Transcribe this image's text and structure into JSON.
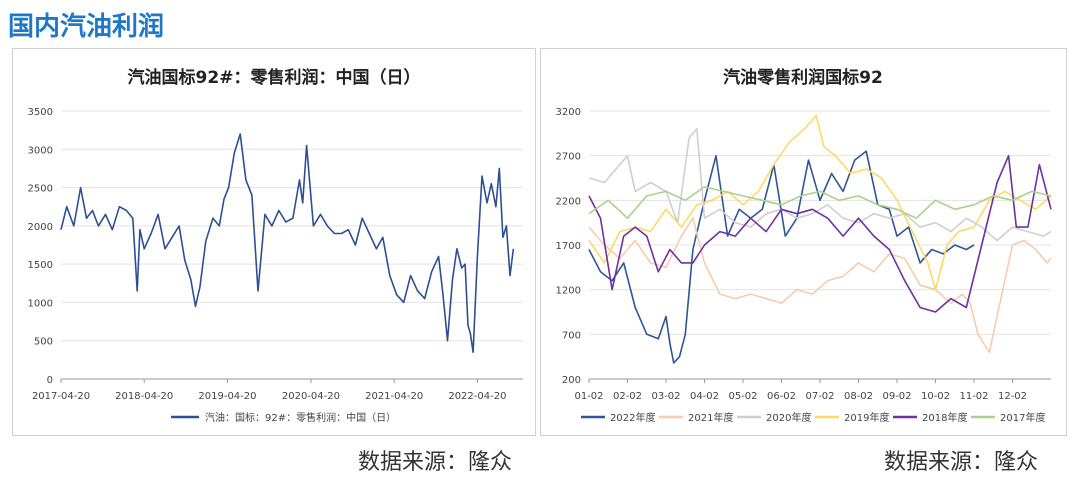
{
  "page_title": "国内汽油利润",
  "source_left": "数据来源：隆众",
  "source_right": "数据来源：隆众",
  "chart_data": [
    {
      "type": "line",
      "title": "汽油国标92#：零售利润：中国（日）",
      "x_ticks": [
        "2017-04-20",
        "2018-04-20",
        "2019-04-20",
        "2020-04-20",
        "2021-04-20",
        "2022-04-20"
      ],
      "ylim": [
        0,
        3500
      ],
      "y_ticks": [
        0,
        500,
        1000,
        1500,
        2000,
        2500,
        3000,
        3500
      ],
      "grid": "horizontal",
      "legend_position": "bottom",
      "series": [
        {
          "name": "汽油：国标：92#：零售利润：中国（日）",
          "color": "#2f4f94",
          "x": [
            "2017-04-20",
            "2017-05-15",
            "2017-06-15",
            "2017-07-15",
            "2017-08-10",
            "2017-09-05",
            "2017-10-01",
            "2017-11-01",
            "2017-12-01",
            "2018-01-01",
            "2018-02-01",
            "2018-03-01",
            "2018-03-20",
            "2018-04-01",
            "2018-04-20",
            "2018-05-20",
            "2018-06-20",
            "2018-07-20",
            "2018-08-20",
            "2018-09-20",
            "2018-10-15",
            "2018-11-10",
            "2018-12-01",
            "2018-12-20",
            "2019-01-15",
            "2019-02-15",
            "2019-03-15",
            "2019-04-05",
            "2019-04-25",
            "2019-05-20",
            "2019-06-15",
            "2019-07-10",
            "2019-08-05",
            "2019-09-01",
            "2019-10-01",
            "2019-11-01",
            "2019-12-01",
            "2020-01-01",
            "2020-02-01",
            "2020-03-01",
            "2020-03-15",
            "2020-04-01",
            "2020-05-01",
            "2020-06-01",
            "2020-07-01",
            "2020-08-01",
            "2020-09-01",
            "2020-10-01",
            "2020-11-01",
            "2020-12-01",
            "2021-01-01",
            "2021-02-01",
            "2021-03-01",
            "2021-04-01",
            "2021-05-01",
            "2021-06-01",
            "2021-07-01",
            "2021-08-01",
            "2021-09-01",
            "2021-10-01",
            "2021-11-01",
            "2021-11-20",
            "2021-12-10",
            "2022-01-01",
            "2022-01-20",
            "2022-02-10",
            "2022-02-25",
            "2022-03-10",
            "2022-03-20",
            "2022-04-01",
            "2022-04-20",
            "2022-05-10",
            "2022-06-01",
            "2022-06-20",
            "2022-07-10",
            "2022-07-25",
            "2022-08-10",
            "2022-08-25",
            "2022-09-10",
            "2022-09-25"
          ],
          "values": [
            1950,
            2250,
            2000,
            2500,
            2100,
            2200,
            2000,
            2150,
            1950,
            2250,
            2200,
            2100,
            1150,
            1950,
            1700,
            1900,
            2150,
            1700,
            1850,
            2000,
            1550,
            1300,
            950,
            1200,
            1800,
            2100,
            2000,
            2350,
            2500,
            2950,
            3200,
            2600,
            2400,
            1150,
            2150,
            2000,
            2200,
            2050,
            2100,
            2600,
            2300,
            3050,
            2000,
            2150,
            2000,
            1900,
            1900,
            1950,
            1750,
            2100,
            1900,
            1700,
            1850,
            1350,
            1100,
            1000,
            1350,
            1150,
            1050,
            1400,
            1600,
            1100,
            500,
            1300,
            1700,
            1450,
            1500,
            700,
            600,
            350,
            1600,
            2650,
            2300,
            2550,
            2250,
            2750,
            1850,
            2000,
            1350,
            1700
          ]
        }
      ]
    },
    {
      "type": "line",
      "title": "汽油零售利润国标92",
      "categories": [
        "01-02",
        "02-02",
        "03-02",
        "04-02",
        "05-02",
        "06-02",
        "07-02",
        "08-02",
        "09-02",
        "10-02",
        "11-02",
        "12-02"
      ],
      "ylim": [
        200,
        3200
      ],
      "y_ticks": [
        200,
        700,
        1200,
        1700,
        2200,
        2700,
        3200
      ],
      "grid": "horizontal",
      "legend_position": "bottom",
      "series": [
        {
          "name": "2022年度",
          "color": "#2f5597",
          "x": [
            0,
            0.3,
            0.6,
            0.9,
            1.2,
            1.5,
            1.8,
            2.0,
            2.1,
            2.2,
            2.35,
            2.5,
            2.7,
            3.0,
            3.3,
            3.6,
            3.9,
            4.2,
            4.5,
            4.8,
            5.1,
            5.4,
            5.7,
            6.0,
            6.3,
            6.6,
            6.9,
            7.2,
            7.5,
            7.8,
            8.0,
            8.3,
            8.6,
            8.9,
            9.2,
            9.5,
            9.8,
            10.0
          ],
          "values": [
            1650,
            1400,
            1300,
            1500,
            1000,
            700,
            650,
            900,
            600,
            380,
            450,
            700,
            1650,
            2200,
            2700,
            1800,
            2100,
            2000,
            2100,
            2600,
            1800,
            2000,
            2650,
            2200,
            2500,
            2300,
            2650,
            2750,
            2150,
            2100,
            1800,
            1900,
            1500,
            1650,
            1600,
            1700,
            1650,
            1700
          ]
        },
        {
          "name": "2021年度",
          "color": "#f8cbad",
          "x": [
            0,
            0.4,
            0.8,
            1.2,
            1.6,
            2.0,
            2.4,
            2.7,
            3.0,
            3.4,
            3.8,
            4.2,
            4.6,
            5.0,
            5.4,
            5.8,
            6.2,
            6.6,
            7.0,
            7.4,
            7.8,
            8.2,
            8.6,
            9.0,
            9.4,
            9.7,
            9.9,
            10.1,
            10.4,
            10.7,
            11.0,
            11.3,
            11.6,
            11.9,
            12.0
          ],
          "values": [
            1900,
            1700,
            1550,
            1750,
            1500,
            1450,
            1800,
            2000,
            1500,
            1150,
            1100,
            1150,
            1100,
            1050,
            1200,
            1150,
            1300,
            1350,
            1500,
            1400,
            1600,
            1550,
            1250,
            1200,
            1050,
            1150,
            1050,
            700,
            500,
            1100,
            1700,
            1750,
            1650,
            1500,
            1550
          ]
        },
        {
          "name": "2020年度",
          "color": "#cfcfcf",
          "x": [
            0,
            0.4,
            0.8,
            1.0,
            1.2,
            1.6,
            2.0,
            2.3,
            2.6,
            2.8,
            3.0,
            3.4,
            3.8,
            4.2,
            4.6,
            5.0,
            5.4,
            5.8,
            6.2,
            6.6,
            7.0,
            7.4,
            7.8,
            8.2,
            8.6,
            9.0,
            9.4,
            9.8,
            10.2,
            10.6,
            11.0,
            11.4,
            11.8,
            12.0
          ],
          "values": [
            2450,
            2400,
            2600,
            2700,
            2300,
            2400,
            2300,
            1950,
            2900,
            3000,
            2000,
            2100,
            1950,
            1900,
            2050,
            2100,
            2000,
            2050,
            2150,
            2000,
            1950,
            2050,
            2000,
            2050,
            1900,
            1950,
            1850,
            2000,
            1900,
            1750,
            1900,
            1850,
            1800,
            1850
          ]
        },
        {
          "name": "2019年度",
          "color": "#ffd966",
          "x": [
            0,
            0.4,
            0.8,
            1.2,
            1.6,
            2.0,
            2.4,
            2.8,
            3.2,
            3.6,
            4.0,
            4.4,
            4.8,
            5.2,
            5.6,
            5.9,
            6.1,
            6.4,
            6.8,
            7.2,
            7.6,
            8.0,
            8.4,
            8.8,
            9.0,
            9.3,
            9.6,
            10.0,
            10.4,
            10.8,
            11.2,
            11.6,
            12.0
          ],
          "values": [
            1750,
            1500,
            1850,
            1900,
            1850,
            2100,
            1900,
            2150,
            2200,
            2300,
            2150,
            2300,
            2600,
            2850,
            3000,
            3150,
            2800,
            2700,
            2500,
            2550,
            2450,
            2200,
            1850,
            1500,
            1200,
            1700,
            1850,
            1900,
            2200,
            2300,
            2200,
            2100,
            2250
          ]
        },
        {
          "name": "2018年度",
          "color": "#7030a0",
          "x": [
            0,
            0.3,
            0.6,
            0.9,
            1.2,
            1.5,
            1.8,
            2.1,
            2.4,
            2.7,
            3.0,
            3.4,
            3.8,
            4.2,
            4.6,
            5.0,
            5.4,
            5.8,
            6.2,
            6.6,
            7.0,
            7.4,
            7.8,
            8.2,
            8.6,
            9.0,
            9.4,
            9.8,
            10.2,
            10.6,
            10.9,
            11.1,
            11.4,
            11.7,
            12.0
          ],
          "values": [
            2250,
            2000,
            1200,
            1800,
            1900,
            1800,
            1400,
            1650,
            1500,
            1500,
            1700,
            1850,
            1800,
            2000,
            1850,
            2100,
            2050,
            2100,
            2000,
            1800,
            2000,
            1800,
            1650,
            1300,
            1000,
            950,
            1100,
            1000,
            1700,
            2400,
            2700,
            1900,
            1900,
            2600,
            2100
          ]
        },
        {
          "name": "2017年度",
          "color": "#a9d18e",
          "x": [
            0,
            0.5,
            1.0,
            1.5,
            2.0,
            2.5,
            3.0,
            3.5,
            4.0,
            4.5,
            5.0,
            5.5,
            6.0,
            6.5,
            7.0,
            7.5,
            8.0,
            8.5,
            9.0,
            9.5,
            10.0,
            10.5,
            11.0,
            11.5,
            12.0
          ],
          "values": [
            2050,
            2200,
            2000,
            2250,
            2300,
            2200,
            2350,
            2300,
            2250,
            2200,
            2150,
            2250,
            2300,
            2200,
            2250,
            2150,
            2100,
            2000,
            2200,
            2100,
            2150,
            2250,
            2200,
            2300,
            2250
          ]
        }
      ]
    }
  ]
}
